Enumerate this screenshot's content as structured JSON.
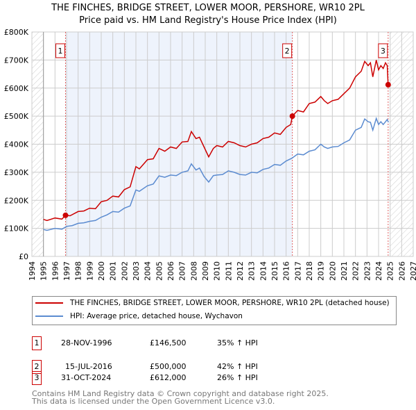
{
  "chart_data": {
    "type": "line",
    "title": "THE FINCHES, BRIDGE STREET, LOWER MOOR, PERSHORE, WR10 2PL",
    "subtitle": "Price paid vs. HM Land Registry's House Price Index (HPI)",
    "xlim": [
      1994,
      2027
    ],
    "ylim": [
      0,
      800000
    ],
    "x_ticks": [
      "1994",
      "1995",
      "1996",
      "1997",
      "1998",
      "1999",
      "2000",
      "2001",
      "2002",
      "2003",
      "2004",
      "2005",
      "2006",
      "2007",
      "2008",
      "2009",
      "2010",
      "2011",
      "2012",
      "2013",
      "2014",
      "2015",
      "2016",
      "2017",
      "2018",
      "2019",
      "2020",
      "2021",
      "2022",
      "2023",
      "2024",
      "2025",
      "2026",
      "2027"
    ],
    "y_ticks": [
      {
        "v": 0,
        "label": "£0"
      },
      {
        "v": 100000,
        "label": "£100K"
      },
      {
        "v": 200000,
        "label": "£200K"
      },
      {
        "v": 300000,
        "label": "£300K"
      },
      {
        "v": 400000,
        "label": "£400K"
      },
      {
        "v": 500000,
        "label": "£500K"
      },
      {
        "v": 600000,
        "label": "£600K"
      },
      {
        "v": 700000,
        "label": "£700K"
      },
      {
        "v": 800000,
        "label": "£800K"
      }
    ],
    "grid": true,
    "series": [
      {
        "name": "THE FINCHES, BRIDGE STREET, LOWER MOOR, PERSHORE, WR10 2PL (detached house)",
        "color": "#cc0000",
        "x": [
          1995,
          1995.3,
          1996,
          1996.6,
          1996.91,
          1997.3,
          1998,
          1998.5,
          1999,
          1999.5,
          2000,
          2000.5,
          2001,
          2001.5,
          2002,
          2002.5,
          2003,
          2003.3,
          2004,
          2004.5,
          2005,
          2005.5,
          2006,
          2006.5,
          2007,
          2007.5,
          2007.8,
          2008.2,
          2008.5,
          2008.9,
          2009.3,
          2009.7,
          2010,
          2010.5,
          2011,
          2011.5,
          2012,
          2012.5,
          2013,
          2013.5,
          2014,
          2014.5,
          2015,
          2015.5,
          2016,
          2016.4,
          2016.54,
          2017,
          2017.5,
          2018,
          2018.5,
          2019,
          2019.3,
          2019.6,
          2020,
          2020.5,
          2021,
          2021.5,
          2022,
          2022.5,
          2022.8,
          2023.1,
          2023.3,
          2023.5,
          2023.8,
          2024.0,
          2024.2,
          2024.4,
          2024.6,
          2024.75,
          2024.83
        ],
        "y": [
          132000,
          128000,
          137000,
          133000,
          146500,
          145000,
          160000,
          162000,
          172000,
          170000,
          195000,
          200000,
          215000,
          212000,
          238000,
          248000,
          320000,
          312000,
          345000,
          348000,
          385000,
          375000,
          390000,
          385000,
          408000,
          410000,
          445000,
          420000,
          425000,
          390000,
          355000,
          385000,
          395000,
          390000,
          410000,
          405000,
          395000,
          390000,
          400000,
          405000,
          420000,
          425000,
          440000,
          435000,
          460000,
          470000,
          500000,
          520000,
          515000,
          545000,
          550000,
          570000,
          555000,
          545000,
          555000,
          560000,
          580000,
          600000,
          640000,
          660000,
          695000,
          680000,
          690000,
          640000,
          700000,
          665000,
          680000,
          670000,
          690000,
          680000,
          612000
        ]
      },
      {
        "name": "HPI: Average price, detached house, Wychavon",
        "color": "#5b8bd0",
        "x": [
          1995,
          1995.3,
          1996,
          1996.6,
          1997,
          1997.5,
          1998,
          1998.5,
          1999,
          1999.5,
          2000,
          2000.5,
          2001,
          2001.5,
          2002,
          2002.5,
          2003,
          2003.3,
          2004,
          2004.5,
          2005,
          2005.5,
          2006,
          2006.5,
          2007,
          2007.5,
          2007.8,
          2008.2,
          2008.5,
          2008.9,
          2009.3,
          2009.7,
          2010,
          2010.5,
          2011,
          2011.5,
          2012,
          2012.5,
          2013,
          2013.5,
          2014,
          2014.5,
          2015,
          2015.5,
          2016,
          2016.5,
          2017,
          2017.5,
          2018,
          2018.5,
          2019,
          2019.3,
          2019.6,
          2020,
          2020.5,
          2021,
          2021.5,
          2022,
          2022.5,
          2022.8,
          2023.1,
          2023.3,
          2023.5,
          2023.8,
          2024.0,
          2024.2,
          2024.4,
          2024.6,
          2024.75,
          2024.85
        ],
        "y": [
          96000,
          93000,
          100000,
          97000,
          107000,
          110000,
          118000,
          120000,
          125000,
          128000,
          140000,
          148000,
          160000,
          158000,
          172000,
          180000,
          237000,
          232000,
          252000,
          258000,
          287000,
          282000,
          290000,
          288000,
          300000,
          305000,
          330000,
          308000,
          315000,
          285000,
          265000,
          288000,
          290000,
          292000,
          305000,
          300000,
          292000,
          290000,
          300000,
          298000,
          310000,
          315000,
          328000,
          325000,
          340000,
          350000,
          365000,
          362000,
          375000,
          380000,
          400000,
          390000,
          385000,
          390000,
          392000,
          405000,
          415000,
          450000,
          460000,
          490000,
          480000,
          478000,
          450000,
          492000,
          470000,
          480000,
          470000,
          480000,
          488000,
          478000
        ]
      }
    ],
    "annotations": [
      {
        "label": "1",
        "x": 1996.91,
        "y": 146500
      },
      {
        "label": "2",
        "x": 2016.54,
        "y": 500000
      },
      {
        "label": "3",
        "x": 2024.83,
        "y": 612000
      }
    ],
    "legend_position": "bottom"
  },
  "table": [
    {
      "n": "1",
      "date": "28-NOV-1996",
      "price": "£146,500",
      "hpi": "35% ↑ HPI"
    },
    {
      "n": "2",
      "date": "15-JUL-2016",
      "price": "£500,000",
      "hpi": "42% ↑ HPI"
    },
    {
      "n": "3",
      "date": "31-OCT-2024",
      "price": "£612,000",
      "hpi": "26% ↑ HPI"
    }
  ],
  "footer": {
    "line1": "Contains HM Land Registry data © Crown copyright and database right 2025.",
    "line2": "This data is licensed under the Open Government Licence v3.0."
  }
}
